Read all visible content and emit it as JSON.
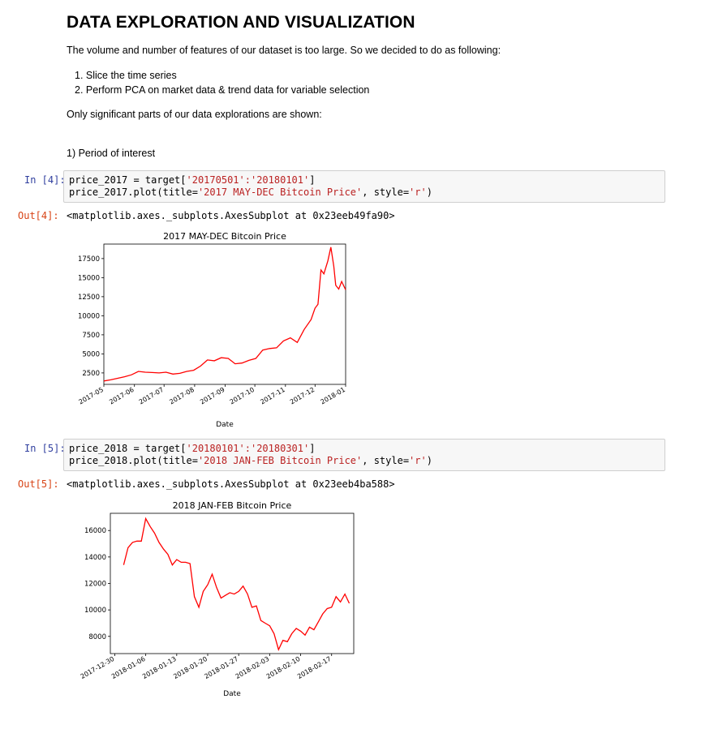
{
  "heading": "DATA EXPLORATION AND VISUALIZATION",
  "intro": "The volume and number of features of our dataset is too large. So we decided to do as following:",
  "steps": [
    "1. Slice the time series",
    "2. Perform PCA on market data & trend data for variable selection"
  ],
  "note": "Only significant parts of our data explorations are shown:",
  "section": "1) Period of interest",
  "cells": [
    {
      "in_prompt": "In [4]:",
      "line1_pre": "price_2017 = target[",
      "line1_str": "'20170501':'20180101'",
      "line1_post": "]",
      "line2_pre": "price_2017.plot(title=",
      "line2_str": "'2017 MAY-DEC Bitcoin Price'",
      "line2_mid": ", style=",
      "line2_str2": "'r'",
      "line2_post": ")",
      "out_prompt": "Out[4]:",
      "output": "<matplotlib.axes._subplots.AxesSubplot at 0x23eeb49fa90>"
    },
    {
      "in_prompt": "In [5]:",
      "line1_pre": "price_2018 = target[",
      "line1_str": "'20180101':'20180301'",
      "line1_post": "]",
      "line2_pre": "price_2018.plot(title=",
      "line2_str": "'2018 JAN-FEB Bitcoin Price'",
      "line2_mid": ", style=",
      "line2_str2": "'r'",
      "line2_post": ")",
      "out_prompt": "Out[5]:",
      "output": "<matplotlib.axes._subplots.AxesSubplot at 0x23eeb4ba588>"
    }
  ],
  "chart_data": [
    {
      "type": "line",
      "title": "2017 MAY-DEC Bitcoin Price",
      "xlabel": "Date",
      "ylabel": "",
      "color": "#ff0000",
      "xticks": [
        "2017-05",
        "2017-06",
        "2017-07",
        "2017-08",
        "2017-09",
        "2017-10",
        "2017-11",
        "2017-12",
        "2018-01"
      ],
      "yticks": [
        2500,
        5000,
        7500,
        10000,
        12500,
        15000,
        17500
      ],
      "xlim": [
        "2017-05-01",
        "2018-01-01"
      ],
      "ylim": [
        1000,
        19400
      ],
      "x": [
        "2017-05-01",
        "2017-05-08",
        "2017-05-15",
        "2017-05-22",
        "2017-05-29",
        "2017-06-05",
        "2017-06-12",
        "2017-06-19",
        "2017-06-26",
        "2017-07-03",
        "2017-07-10",
        "2017-07-17",
        "2017-07-24",
        "2017-07-31",
        "2017-08-07",
        "2017-08-14",
        "2017-08-21",
        "2017-08-28",
        "2017-09-04",
        "2017-09-11",
        "2017-09-18",
        "2017-09-25",
        "2017-10-02",
        "2017-10-09",
        "2017-10-16",
        "2017-10-23",
        "2017-10-30",
        "2017-11-06",
        "2017-11-13",
        "2017-11-20",
        "2017-11-27",
        "2017-12-01",
        "2017-12-04",
        "2017-12-07",
        "2017-12-10",
        "2017-12-14",
        "2017-12-17",
        "2017-12-20",
        "2017-12-22",
        "2017-12-25",
        "2017-12-28",
        "2018-01-01"
      ],
      "y": [
        1450,
        1600,
        1800,
        2000,
        2250,
        2700,
        2600,
        2550,
        2500,
        2600,
        2350,
        2450,
        2700,
        2850,
        3400,
        4200,
        4100,
        4500,
        4400,
        3700,
        3800,
        4150,
        4400,
        5500,
        5700,
        5800,
        6700,
        7100,
        6500,
        8200,
        9500,
        11000,
        11500,
        16000,
        15500,
        17200,
        19000,
        16500,
        14000,
        13500,
        14500,
        13400
      ]
    },
    {
      "type": "line",
      "title": "2018 JAN-FEB Bitcoin Price",
      "xlabel": "Date",
      "ylabel": "",
      "color": "#ff0000",
      "xticks": [
        "2017-12-30",
        "2018-01-06",
        "2018-01-13",
        "2018-01-20",
        "2018-01-27",
        "2018-02-03",
        "2018-02-10",
        "2018-02-17"
      ],
      "yticks": [
        8000,
        10000,
        12000,
        14000,
        16000
      ],
      "xlim": [
        "2017-12-29",
        "2018-02-22"
      ],
      "ylim": [
        6700,
        17300
      ],
      "x": [
        "2018-01-01",
        "2018-01-02",
        "2018-01-03",
        "2018-01-04",
        "2018-01-05",
        "2018-01-06",
        "2018-01-07",
        "2018-01-08",
        "2018-01-09",
        "2018-01-10",
        "2018-01-11",
        "2018-01-12",
        "2018-01-13",
        "2018-01-14",
        "2018-01-15",
        "2018-01-16",
        "2018-01-17",
        "2018-01-18",
        "2018-01-19",
        "2018-01-20",
        "2018-01-21",
        "2018-01-22",
        "2018-01-23",
        "2018-01-24",
        "2018-01-25",
        "2018-01-26",
        "2018-01-27",
        "2018-01-28",
        "2018-01-29",
        "2018-01-30",
        "2018-01-31",
        "2018-02-01",
        "2018-02-02",
        "2018-02-03",
        "2018-02-04",
        "2018-02-05",
        "2018-02-06",
        "2018-02-07",
        "2018-02-08",
        "2018-02-09",
        "2018-02-10",
        "2018-02-11",
        "2018-02-12",
        "2018-02-13",
        "2018-02-14",
        "2018-02-15",
        "2018-02-16",
        "2018-02-17",
        "2018-02-18",
        "2018-02-19",
        "2018-02-20",
        "2018-02-21"
      ],
      "y": [
        13400,
        14700,
        15100,
        15200,
        15200,
        16900,
        16300,
        15800,
        15100,
        14600,
        14200,
        13400,
        13800,
        13600,
        13600,
        13500,
        11000,
        10200,
        11400,
        11900,
        12700,
        11700,
        10900,
        11100,
        11300,
        11200,
        11400,
        11800,
        11200,
        10200,
        10300,
        9200,
        9000,
        8800,
        8200,
        7000,
        7700,
        7600,
        8200,
        8600,
        8400,
        8100,
        8700,
        8500,
        9100,
        9700,
        10100,
        10200,
        11000,
        10600,
        11200,
        10500
      ]
    }
  ]
}
